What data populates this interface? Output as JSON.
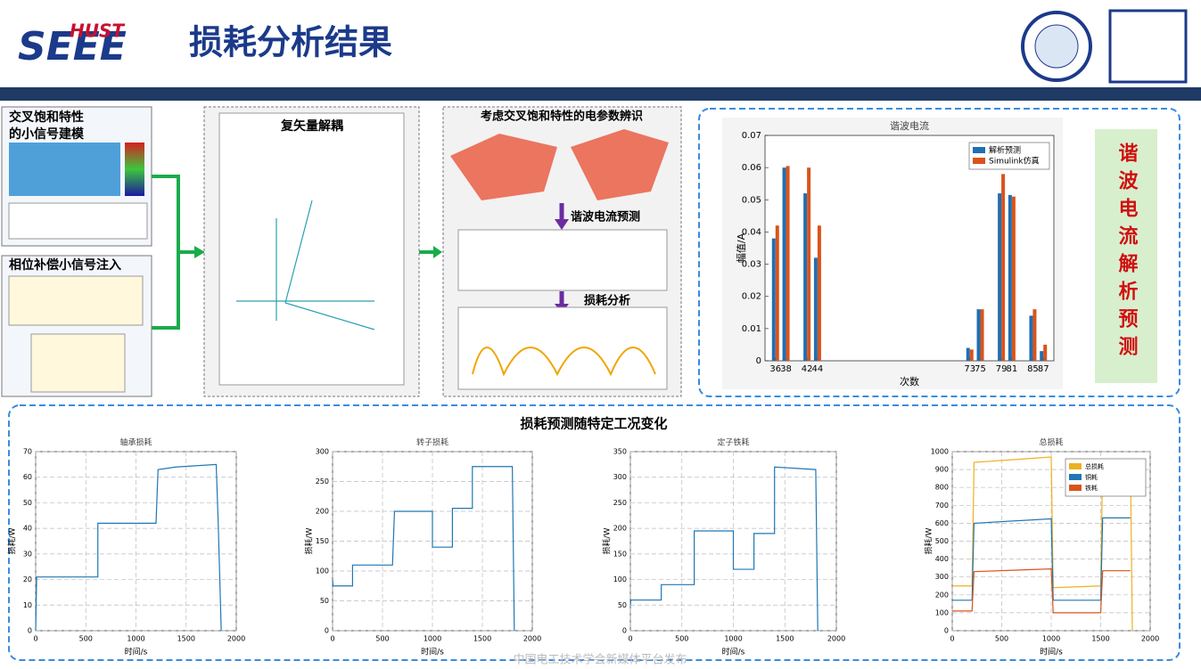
{
  "header": {
    "logo_top": "HUST",
    "logo_main": "SEEE",
    "title": "损耗分析结果"
  },
  "panels": {
    "cross_saturation": [
      "交叉饱和特性",
      "的小信号建模"
    ],
    "phase_comp": "相位补偿小信号注入",
    "decoupling": "复矢量解耦",
    "identification": "考虑交叉饱和特性的电参数辨识",
    "harmonic_prediction": "谐波电流预测",
    "loss_analysis": "损耗分析",
    "side_label": "谐波电流解析预测",
    "bottom_title": "损耗预测随特定工况变化"
  },
  "footer": "中国电工技术学会新媒体平台发布",
  "chart_data": [
    {
      "type": "bar",
      "title": "谐波电流",
      "x_label": "次数",
      "y_label": "幅值/A",
      "x": [
        36,
        38,
        42,
        44,
        73,
        75,
        79,
        81,
        85,
        87
      ],
      "series": [
        {
          "name": "解析预测",
          "color": "#1f6fb4",
          "values": [
            0.038,
            0.06,
            0.052,
            0.032,
            0.004,
            0.016,
            0.052,
            0.0515,
            0.014,
            0.003
          ]
        },
        {
          "name": "Simulink仿真",
          "color": "#d9541a",
          "values": [
            0.042,
            0.0605,
            0.06,
            0.042,
            0.0035,
            0.016,
            0.058,
            0.051,
            0.016,
            0.005
          ]
        }
      ],
      "xlim": [
        34,
        89
      ],
      "xticks": [
        36,
        38,
        42,
        44,
        73,
        75,
        79,
        81,
        85,
        87
      ],
      "ylim": [
        0,
        0.07
      ],
      "yticks": [
        0,
        0.01,
        0.02,
        0.03,
        0.04,
        0.05,
        0.06,
        0.07
      ],
      "legend": "upper right"
    },
    {
      "type": "line",
      "title": "轴承损耗",
      "x_label": "时间/s",
      "y_label": "损耗/W",
      "x": [
        0,
        10,
        620,
        620,
        1200,
        1220,
        1400,
        1800,
        1820,
        1850
      ],
      "series": [
        {
          "color": "#1f77b4",
          "values": [
            0,
            21,
            21,
            42,
            42,
            63,
            64,
            65,
            42,
            0
          ]
        }
      ],
      "xlim": [
        0,
        2000
      ],
      "xticks": [
        0,
        500,
        1000,
        1500,
        2000
      ],
      "ylim": [
        0,
        70
      ],
      "yticks": [
        0,
        10,
        20,
        30,
        40,
        50,
        60,
        70
      ],
      "grid": true
    },
    {
      "type": "line",
      "title": "转子损耗",
      "x_label": "时间/s",
      "y_label": "损耗/W",
      "x": [
        0,
        5,
        200,
        200,
        600,
        620,
        1000,
        1000,
        1200,
        1200,
        1400,
        1400,
        1800,
        1820
      ],
      "series": [
        {
          "color": "#1f77b4",
          "values": [
            85,
            75,
            75,
            110,
            110,
            200,
            200,
            140,
            140,
            205,
            205,
            275,
            275,
            0
          ]
        }
      ],
      "xlim": [
        0,
        2000
      ],
      "xticks": [
        0,
        500,
        1000,
        1500,
        2000
      ],
      "ylim": [
        0,
        300
      ],
      "yticks": [
        0,
        50,
        100,
        150,
        200,
        250,
        300
      ],
      "grid": true
    },
    {
      "type": "line",
      "title": "定子铁耗",
      "x_label": "时间/s",
      "y_label": "损耗/W",
      "x": [
        0,
        5,
        300,
        300,
        620,
        620,
        1000,
        1000,
        1200,
        1200,
        1400,
        1400,
        1800,
        1820
      ],
      "series": [
        {
          "color": "#1f77b4",
          "values": [
            50,
            60,
            60,
            90,
            90,
            195,
            195,
            120,
            120,
            190,
            190,
            320,
            315,
            0
          ]
        }
      ],
      "xlim": [
        0,
        2000
      ],
      "xticks": [
        0,
        500,
        1000,
        1500,
        2000
      ],
      "ylim": [
        0,
        350
      ],
      "yticks": [
        0,
        50,
        100,
        150,
        200,
        250,
        300,
        350
      ],
      "grid": true
    },
    {
      "type": "line",
      "title": "总损耗",
      "x_label": "时间/s",
      "y_label": "损耗/W",
      "x": [
        0,
        200,
        220,
        1000,
        1020,
        1500,
        1520,
        1800,
        1820
      ],
      "series": [
        {
          "name": "总损耗",
          "color": "#edb120",
          "values": [
            250,
            250,
            940,
            970,
            240,
            250,
            950,
            950,
            0
          ]
        },
        {
          "name": "铜耗",
          "color": "#1f77b4",
          "values": [
            170,
            170,
            600,
            625,
            170,
            170,
            630,
            630,
            null
          ]
        },
        {
          "name": "铁耗",
          "color": "#d9541a",
          "values": [
            110,
            110,
            330,
            345,
            100,
            100,
            335,
            335,
            null
          ]
        }
      ],
      "xlim": [
        0,
        2000
      ],
      "xticks": [
        0,
        500,
        1000,
        1500,
        2000
      ],
      "ylim": [
        0,
        1000
      ],
      "yticks": [
        0,
        100,
        200,
        300,
        400,
        500,
        600,
        700,
        800,
        900,
        1000
      ],
      "grid": true,
      "legend": "upper right"
    }
  ]
}
